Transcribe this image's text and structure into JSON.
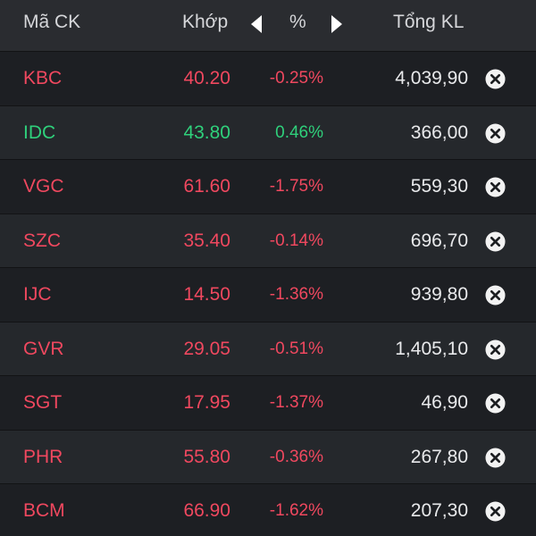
{
  "header": {
    "symbol_label": "Mã CK",
    "price_label": "Khớp",
    "percent_label": "%",
    "volume_label": "Tổng KL"
  },
  "colors": {
    "down": "#f0485f",
    "up": "#2fd07b",
    "background": "#1c1e21",
    "header_background": "#2a2c30"
  },
  "rows": [
    {
      "symbol": "KBC",
      "price": "40.20",
      "change_pct": "-0.25%",
      "volume": "4,039,90",
      "direction": "down"
    },
    {
      "symbol": "IDC",
      "price": "43.80",
      "change_pct": "0.46%",
      "volume": "366,00",
      "direction": "up"
    },
    {
      "symbol": "VGC",
      "price": "61.60",
      "change_pct": "-1.75%",
      "volume": "559,30",
      "direction": "down"
    },
    {
      "symbol": "SZC",
      "price": "35.40",
      "change_pct": "-0.14%",
      "volume": "696,70",
      "direction": "down"
    },
    {
      "symbol": "IJC",
      "price": "14.50",
      "change_pct": "-1.36%",
      "volume": "939,80",
      "direction": "down"
    },
    {
      "symbol": "GVR",
      "price": "29.05",
      "change_pct": "-0.51%",
      "volume": "1,405,10",
      "direction": "down"
    },
    {
      "symbol": "SGT",
      "price": "17.95",
      "change_pct": "-1.37%",
      "volume": "46,90",
      "direction": "down"
    },
    {
      "symbol": "PHR",
      "price": "55.80",
      "change_pct": "-0.36%",
      "volume": "267,80",
      "direction": "down"
    },
    {
      "symbol": "BCM",
      "price": "66.90",
      "change_pct": "-1.62%",
      "volume": "207,30",
      "direction": "down"
    }
  ],
  "icons": {
    "prev": "triangle-left-icon",
    "next": "triangle-right-icon",
    "remove": "close-circle-icon"
  }
}
